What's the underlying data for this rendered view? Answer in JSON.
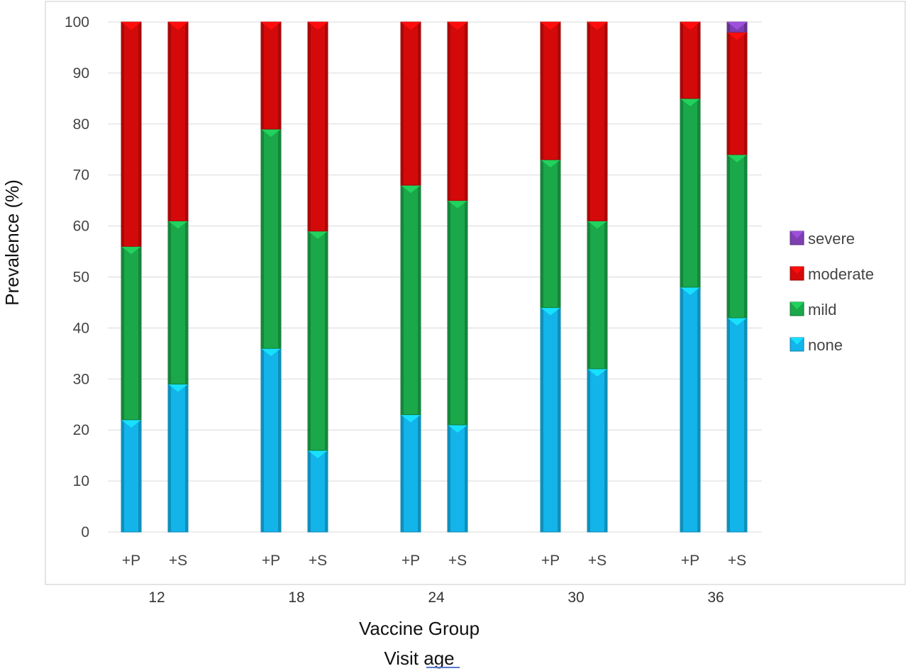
{
  "chart_data": {
    "type": "bar",
    "stacked": true,
    "ylabel": "Prevalence (%)",
    "xlabel_line1": "Vaccine Group",
    "xlabel_line2": "Visit age",
    "ylim": [
      0,
      100
    ],
    "yticks": [
      "0",
      "10",
      "20",
      "30",
      "40",
      "50",
      "60",
      "70",
      "80",
      "90",
      "100"
    ],
    "grid": true,
    "legend_position": "right",
    "groups": [
      {
        "label": "12",
        "bars": [
          {
            "label": "+P",
            "none": 22,
            "mild": 34,
            "moderate": 44,
            "severe": 0
          },
          {
            "label": "+S",
            "none": 29,
            "mild": 32,
            "moderate": 39,
            "severe": 0
          }
        ]
      },
      {
        "label": "18",
        "bars": [
          {
            "label": "+P",
            "none": 36,
            "mild": 43,
            "moderate": 21,
            "severe": 0
          },
          {
            "label": "+S",
            "none": 16,
            "mild": 43,
            "moderate": 41,
            "severe": 0
          }
        ]
      },
      {
        "label": "24",
        "bars": [
          {
            "label": "+P",
            "none": 23,
            "mild": 45,
            "moderate": 32,
            "severe": 0
          },
          {
            "label": "+S",
            "none": 21,
            "mild": 44,
            "moderate": 35,
            "severe": 0
          }
        ]
      },
      {
        "label": "30",
        "bars": [
          {
            "label": "+P",
            "none": 44,
            "mild": 29,
            "moderate": 27,
            "severe": 0
          },
          {
            "label": "+S",
            "none": 32,
            "mild": 29,
            "moderate": 39,
            "severe": 0
          }
        ]
      },
      {
        "label": "36",
        "bars": [
          {
            "label": "+P",
            "none": 48,
            "mild": 37,
            "moderate": 15,
            "severe": 0
          },
          {
            "label": "+S",
            "none": 42,
            "mild": 32,
            "moderate": 24,
            "severe": 2
          }
        ]
      }
    ],
    "series": [
      {
        "key": "none",
        "name": "none",
        "color": "#12b4ea"
      },
      {
        "key": "mild",
        "name": "mild",
        "color": "#1aa84a"
      },
      {
        "key": "moderate",
        "name": "moderate",
        "color": "#d40a0a"
      },
      {
        "key": "severe",
        "name": "severe",
        "color": "#7e3fb0"
      }
    ],
    "legend_order": [
      "severe",
      "moderate",
      "mild",
      "none"
    ]
  }
}
